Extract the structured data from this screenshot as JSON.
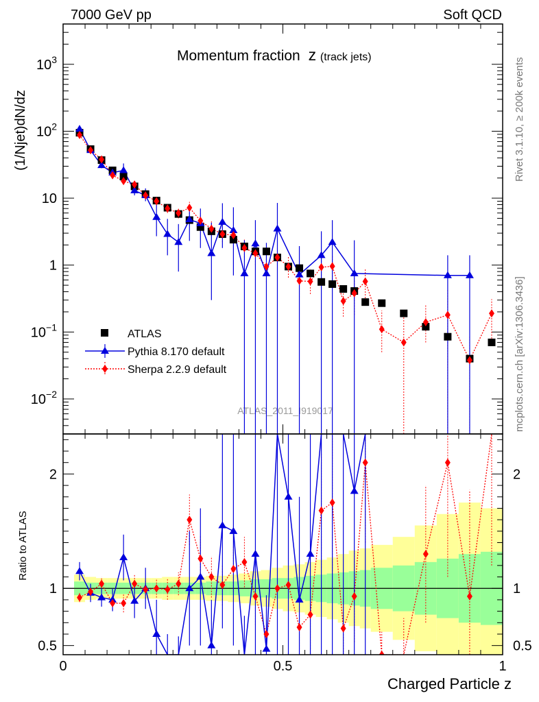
{
  "header": {
    "left": "7000 GeV pp",
    "right": "Soft QCD"
  },
  "side_labels": {
    "rivet": "Rivet 3.1.10, ≥ 200k events",
    "mcplots": "mcplots.cern.ch [arXiv:1306.3436]"
  },
  "chart_data": {
    "type": "scatter",
    "title": "Momentum fraction",
    "title_symbol": "z",
    "title_sub": "(track jets)",
    "analysis_label": "ATLAS_2011_I919017",
    "xlabel": "Charged Particle z",
    "ylabel": "(1/Njet)dN/dz",
    "ratio_ylabel": "Ratio to ATLAS",
    "xlim": [
      0,
      1
    ],
    "ylim": [
      0.003,
      4000
    ],
    "ylog": true,
    "ratio_ylim": [
      0.42,
      2.35
    ],
    "x_ticks": [
      "0",
      "0.5",
      "1"
    ],
    "y_ticks": [
      {
        "base": "10",
        "exp": "3",
        "plain": ""
      },
      {
        "base": "10",
        "exp": "2",
        "plain": ""
      },
      {
        "base": "",
        "exp": "",
        "plain": "10"
      },
      {
        "base": "",
        "exp": "",
        "plain": "1"
      },
      {
        "base": "10",
        "exp": "−1",
        "plain": ""
      },
      {
        "base": "10",
        "exp": "−2",
        "plain": ""
      }
    ],
    "ratio_ticks": [
      "0.5",
      "1",
      "2"
    ],
    "legend": [
      {
        "name": "ATLAS",
        "marker": "square",
        "color": "#000000"
      },
      {
        "name": "Pythia 8.170 default",
        "marker": "triangle",
        "color": "#0000dd"
      },
      {
        "name": "Sherpa 2.2.9 default",
        "marker": "diamond",
        "color": "#ff0000"
      }
    ],
    "x": [
      0.0375,
      0.0625,
      0.0875,
      0.1125,
      0.1375,
      0.1625,
      0.1875,
      0.2125,
      0.2375,
      0.2625,
      0.2875,
      0.3125,
      0.3375,
      0.3625,
      0.3875,
      0.4125,
      0.4375,
      0.4625,
      0.4875,
      0.5125,
      0.5375,
      0.5625,
      0.5875,
      0.6125,
      0.6375,
      0.6625,
      0.6875,
      0.725,
      0.775,
      0.825,
      0.875,
      0.925,
      0.975
    ],
    "series": [
      {
        "name": "ATLAS",
        "values": [
          95,
          54,
          37,
          26,
          21,
          15,
          11.5,
          9.2,
          7.2,
          5.8,
          4.7,
          3.7,
          3.2,
          2.9,
          2.4,
          1.9,
          1.6,
          1.6,
          1.3,
          0.95,
          0.9,
          0.75,
          0.56,
          0.52,
          0.44,
          0.41,
          0.28,
          0.27,
          0.19,
          0.12,
          0.085,
          0.04,
          0.07
        ]
      },
      {
        "name": "Pythia 8.170 default",
        "x": [
          0.0375,
          0.0625,
          0.0875,
          0.1125,
          0.1375,
          0.1625,
          0.1875,
          0.2125,
          0.2375,
          0.2625,
          0.2875,
          0.3125,
          0.3375,
          0.3625,
          0.3875,
          0.4125,
          0.4375,
          0.4625,
          0.4875,
          0.5375,
          0.5875,
          0.6125,
          0.6625,
          0.875,
          0.925
        ],
        "values": [
          108,
          52,
          31,
          24,
          26,
          13,
          11,
          5.2,
          2.9,
          2.2,
          4.8,
          4.2,
          1.5,
          4.4,
          3.3,
          0.75,
          2.1,
          0.75,
          3.5,
          0.72,
          1.4,
          2.2,
          0.75,
          0.7,
          0.7
        ],
        "err_lo": [
          8,
          4,
          3,
          3,
          5,
          2,
          2,
          2.5,
          1.5,
          1.4,
          2.5,
          2.4,
          1.2,
          2.6,
          2.6,
          0.75,
          2.1,
          0.75,
          3.5,
          0.72,
          1.4,
          2.2,
          0.75,
          0.7,
          0.7
        ],
        "err_hi": [
          12,
          5,
          4,
          4,
          7,
          3,
          3,
          3.8,
          2,
          1.9,
          2.6,
          2.8,
          2.8,
          4,
          4,
          1.6,
          2.6,
          1.4,
          5,
          1.2,
          1.8,
          2.5,
          1.6,
          0.7,
          0.7
        ]
      },
      {
        "name": "Sherpa 2.2.9 default",
        "values": [
          88,
          52,
          38,
          22,
          18,
          16,
          11,
          9,
          7,
          6,
          7.2,
          4.6,
          3.5,
          2.9,
          2.8,
          1.8,
          1.5,
          0.95,
          1.3,
          0.95,
          0.58,
          0.57,
          0.93,
          0.96,
          0.29,
          0.38,
          0.57,
          0.11,
          0.07,
          0.14,
          0.18,
          0.038,
          0.19
        ],
        "err_lo": [
          5,
          3,
          3,
          2,
          2,
          1.5,
          1.2,
          1,
          1,
          1,
          1.4,
          1,
          0.8,
          0.7,
          0.7,
          0.5,
          0.5,
          0.4,
          0.4,
          0.3,
          0.25,
          0.2,
          0.3,
          0.35,
          0.12,
          0.2,
          0.25,
          0.06,
          0.07,
          0.07,
          0.18,
          0.038,
          0.11
        ],
        "err_hi": [
          6,
          4,
          4,
          3,
          3,
          2,
          1.6,
          1.4,
          1.2,
          1.2,
          1.6,
          1.3,
          1,
          0.9,
          0.8,
          0.6,
          0.6,
          0.5,
          0.5,
          0.4,
          0.3,
          0.3,
          0.4,
          0.4,
          0.18,
          0.25,
          0.3,
          0.1,
          0.1,
          0.12,
          0.25,
          0.05,
          0.12
        ]
      }
    ],
    "ratio_band_edges": [
      0.025,
      0.05,
      0.075,
      0.1,
      0.125,
      0.15,
      0.175,
      0.2,
      0.225,
      0.25,
      0.275,
      0.3,
      0.325,
      0.35,
      0.375,
      0.4,
      0.425,
      0.45,
      0.475,
      0.5,
      0.525,
      0.55,
      0.575,
      0.6,
      0.625,
      0.65,
      0.675,
      0.7,
      0.75,
      0.8,
      0.85,
      0.9,
      0.95,
      1.0
    ],
    "ratio_band_green": [
      0.06,
      0.05,
      0.05,
      0.05,
      0.05,
      0.05,
      0.05,
      0.05,
      0.05,
      0.05,
      0.05,
      0.05,
      0.06,
      0.06,
      0.06,
      0.07,
      0.08,
      0.08,
      0.09,
      0.09,
      0.1,
      0.11,
      0.12,
      0.13,
      0.14,
      0.15,
      0.16,
      0.18,
      0.2,
      0.23,
      0.26,
      0.3,
      0.32
    ],
    "ratio_band_yellow": [
      0.12,
      0.1,
      0.09,
      0.09,
      0.09,
      0.09,
      0.09,
      0.09,
      0.1,
      0.1,
      0.1,
      0.1,
      0.11,
      0.11,
      0.12,
      0.13,
      0.15,
      0.16,
      0.18,
      0.2,
      0.21,
      0.23,
      0.25,
      0.27,
      0.3,
      0.33,
      0.35,
      0.38,
      0.45,
      0.55,
      0.65,
      0.75,
      0.7
    ],
    "ratio_pythia": {
      "x": [
        0.0375,
        0.0625,
        0.0875,
        0.1125,
        0.1375,
        0.1625,
        0.1875,
        0.2125,
        0.2375,
        0.2625,
        0.2875,
        0.3125,
        0.3375,
        0.3625,
        0.3875,
        0.4125,
        0.4375,
        0.4625,
        0.4875,
        0.5125,
        0.5375,
        0.5625,
        0.5875,
        0.6125,
        0.6375,
        0.6625,
        0.6875
      ],
      "values": [
        1.15,
        0.96,
        0.92,
        0.9,
        1.27,
        0.89,
        1.0,
        0.6,
        0.4,
        0.38,
        1.0,
        1.1,
        0.5,
        1.55,
        1.5,
        0.38,
        1.3,
        0.47,
        2.4,
        1.8,
        0.9,
        1.3,
        2.5,
        2.7,
        4.5,
        1.85,
        2.6
      ],
      "err_lo": [
        0.08,
        0.08,
        0.08,
        0.1,
        0.2,
        0.15,
        0.18,
        0.3,
        0.2,
        0.2,
        0.5,
        0.6,
        0.4,
        0.9,
        1.0,
        0.38,
        1.3,
        0.47,
        2.4,
        1.8,
        0.9,
        1.3,
        2.5,
        2.7,
        4.5,
        1.85,
        2.6
      ],
      "err_hi": [
        0.08,
        0.08,
        0.08,
        0.1,
        0.2,
        0.15,
        0.18,
        0.3,
        0.2,
        0.2,
        0.5,
        0.6,
        0.4,
        0.9,
        1.0,
        0.38,
        1.3,
        0.47,
        2.4,
        1.8,
        0.9,
        1.3,
        2.5,
        2.7,
        4.5,
        1.85,
        2.6
      ]
    },
    "ratio_sherpa": {
      "values": [
        0.92,
        0.97,
        1.04,
        0.87,
        0.87,
        1.04,
        0.99,
        1.0,
        0.99,
        1.04,
        1.6,
        1.26,
        1.1,
        1.03,
        1.17,
        1.23,
        0.93,
        0.6,
        1.0,
        1.03,
        0.66,
        0.77,
        1.68,
        1.75,
        0.65,
        0.93,
        2.1,
        0.42,
        0.37,
        1.3,
        2.1,
        0.93,
        2.7
      ],
      "err_lo": [
        0.04,
        0.05,
        0.06,
        0.06,
        0.08,
        0.08,
        0.08,
        0.08,
        0.09,
        0.1,
        0.22,
        0.2,
        0.18,
        0.18,
        0.2,
        0.22,
        0.25,
        0.2,
        0.25,
        0.3,
        0.3,
        0.3,
        0.5,
        0.6,
        0.3,
        0.4,
        0.7,
        0.2,
        0.37,
        0.6,
        1.0,
        0.93,
        1.5
      ],
      "err_hi": [
        0.04,
        0.05,
        0.06,
        0.06,
        0.08,
        0.08,
        0.08,
        0.08,
        0.09,
        0.1,
        0.22,
        0.2,
        0.18,
        0.18,
        0.2,
        0.22,
        0.25,
        0.2,
        0.25,
        0.3,
        0.3,
        0.3,
        0.5,
        0.6,
        0.3,
        0.4,
        0.7,
        0.2,
        0.37,
        0.6,
        1.0,
        0.93,
        1.5
      ]
    }
  }
}
